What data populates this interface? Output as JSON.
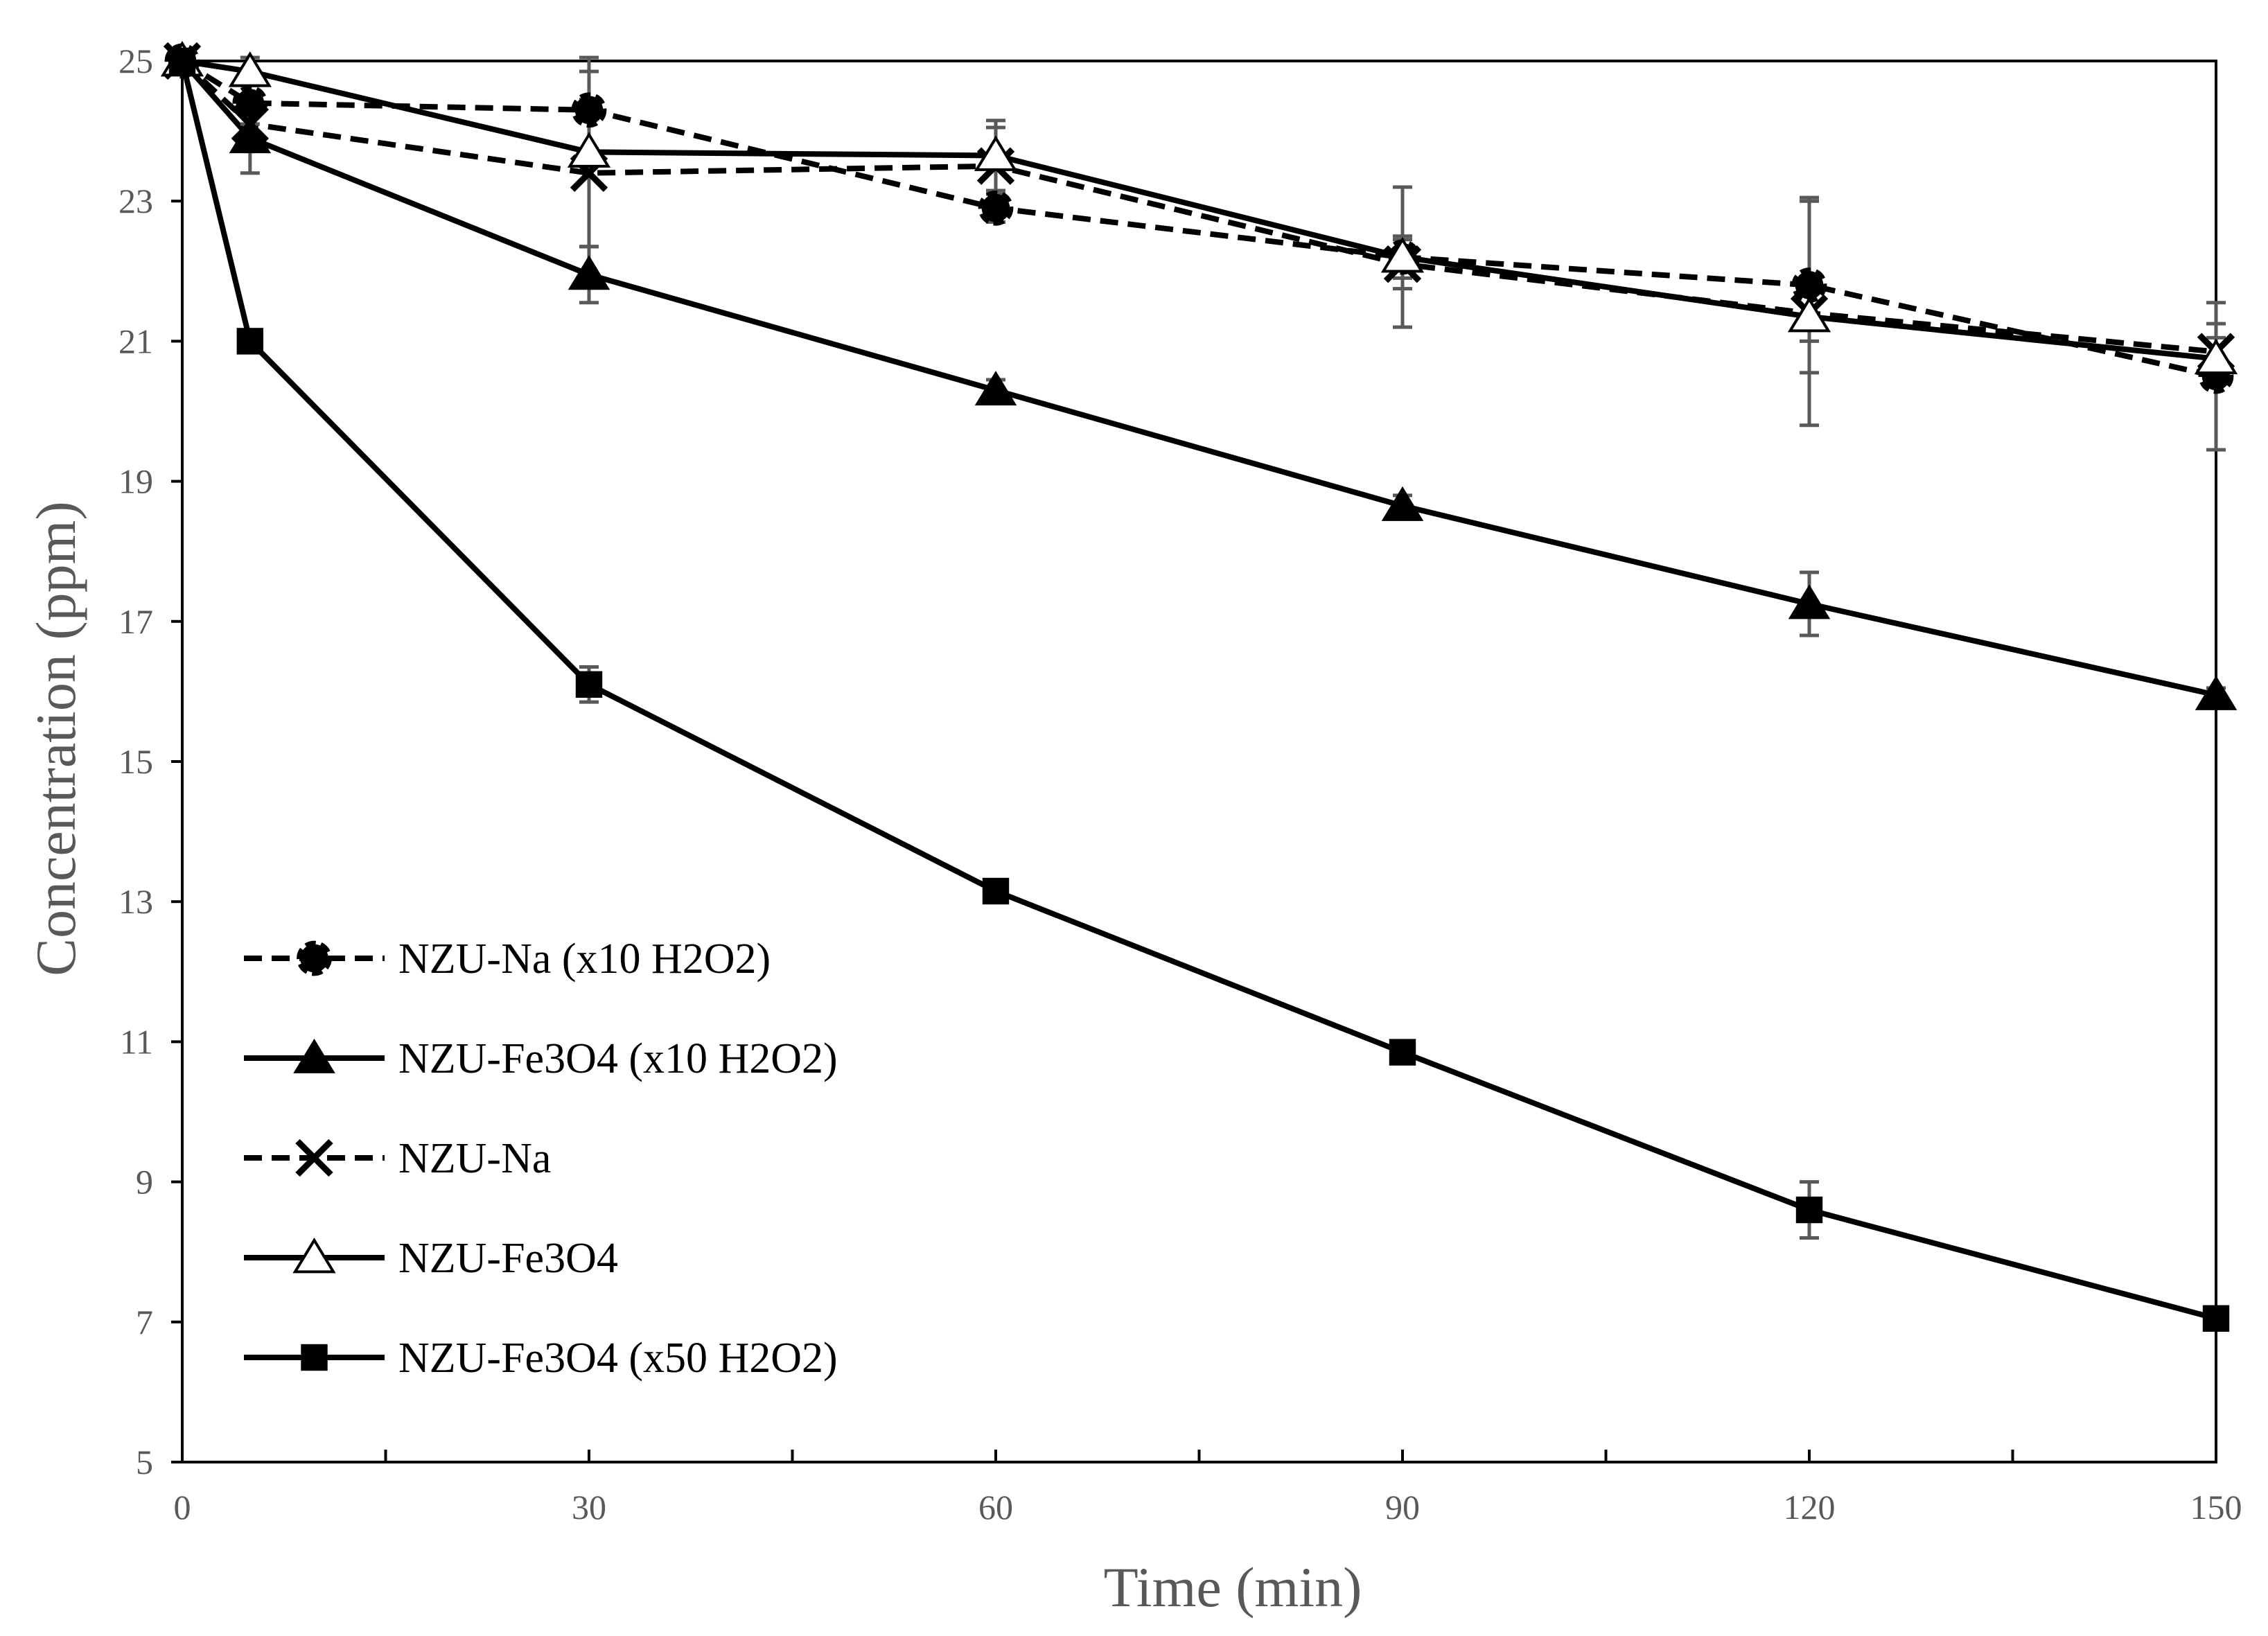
{
  "chart_data": {
    "type": "line",
    "title": "",
    "xlabel": "Time (min)",
    "ylabel": "Concentration (ppm)",
    "xlim": [
      0,
      150
    ],
    "ylim": [
      5,
      25
    ],
    "x_ticks": [
      "0",
      "30",
      "60",
      "90",
      "120",
      "150"
    ],
    "y_ticks": [
      "5",
      "7",
      "9",
      "11",
      "13",
      "15",
      "17",
      "19",
      "21",
      "23",
      "25"
    ],
    "x_minor_step": 15,
    "grid": false,
    "legend_position": "bottom-left",
    "x": [
      0,
      5,
      30,
      60,
      90,
      120,
      150
    ],
    "series": [
      {
        "name": "NZU-Na (x10 H2O2)",
        "marker": "circle",
        "line": "dashed",
        "values": [
          25,
          24.4,
          24.3,
          22.9,
          22.2,
          21.8,
          20.5
        ],
        "errors": [
          0,
          0.3,
          0.55,
          0.2,
          1.0,
          1.25,
          1.05
        ]
      },
      {
        "name": "NZU-Fe3O4 (x10 H2O2)",
        "marker": "triangle-filled",
        "line": "solid",
        "values": [
          25,
          23.9,
          21.95,
          20.3,
          18.65,
          17.25,
          15.95
        ],
        "errors": [
          0,
          0.5,
          0.4,
          0.15,
          0.15,
          0.45,
          0.1
        ]
      },
      {
        "name": "NZU-Na",
        "marker": "x",
        "line": "dashed",
        "values": [
          25,
          24.1,
          23.4,
          23.5,
          22.1,
          21.4,
          20.85
        ],
        "errors": [
          0,
          0.3,
          1.05,
          0.55,
          0.35,
          1.6,
          0.4
        ]
      },
      {
        "name": "NZU-Fe3O4",
        "marker": "triangle-open",
        "line": "solid",
        "values": [
          25,
          24.85,
          23.7,
          23.65,
          22.2,
          21.35,
          20.75
        ],
        "errors": [
          0,
          0.2,
          1.35,
          0.5,
          0.3,
          0.35,
          0.3
        ]
      },
      {
        "name": "NZU-Fe3O4 (x50 H2O2)",
        "marker": "square",
        "line": "solid",
        "values": [
          25,
          21,
          16.1,
          13.15,
          10.85,
          8.6,
          7.05
        ],
        "errors": [
          0,
          0.05,
          0.25,
          0.15,
          0.1,
          0.4,
          0.1
        ]
      }
    ],
    "colors": {
      "line": "#000000",
      "error_bar": "#595959",
      "axis": "#000000",
      "text": "#595959"
    }
  }
}
